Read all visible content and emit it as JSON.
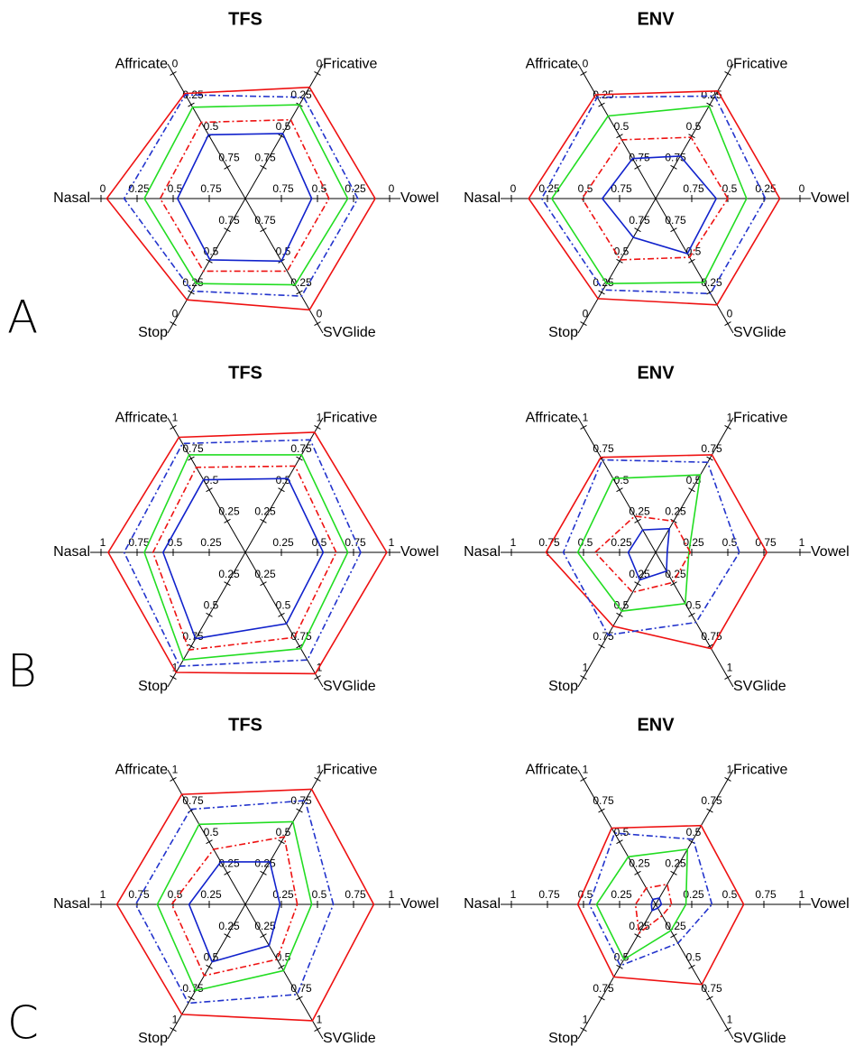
{
  "panel_labels": [
    "A",
    "B",
    "C"
  ],
  "chart_data": [
    {
      "type": "radar",
      "title": "TFS",
      "categories": [
        "Vowel",
        "Fricative",
        "Affricate",
        "Nasal",
        "Stop",
        "SVGlide"
      ],
      "rlim": [
        1,
        0
      ],
      "rticks": [
        0.75,
        0.5,
        0.25,
        0
      ],
      "series": [
        {
          "color": "#ee1111",
          "linestyle": "solid",
          "values": [
            0.1,
            0.11,
            0.16,
            0.04,
            0.19,
            0.11
          ]
        },
        {
          "color": "#2233cc",
          "linestyle": "dashdot",
          "values": [
            0.22,
            0.19,
            0.17,
            0.16,
            0.26,
            0.22
          ]
        },
        {
          "color": "#22dd22",
          "linestyle": "solid",
          "values": [
            0.29,
            0.25,
            0.27,
            0.3,
            0.32,
            0.31
          ]
        },
        {
          "color": "#ee1111",
          "linestyle": "dashdot",
          "values": [
            0.42,
            0.37,
            0.39,
            0.41,
            0.42,
            0.42
          ]
        },
        {
          "color": "#1122cc",
          "linestyle": "solid",
          "values": [
            0.54,
            0.48,
            0.49,
            0.53,
            0.51,
            0.5
          ]
        }
      ]
    },
    {
      "type": "radar",
      "title": "ENV",
      "categories": [
        "Vowel",
        "Fricative",
        "Affricate",
        "Nasal",
        "Stop",
        "SVGlide"
      ],
      "rlim": [
        1,
        0
      ],
      "rticks": [
        0.75,
        0.5,
        0.25,
        0
      ],
      "series": [
        {
          "color": "#ee1111",
          "linestyle": "solid",
          "values": [
            0.14,
            0.14,
            0.17,
            0.12,
            0.2,
            0.15
          ]
        },
        {
          "color": "#2233cc",
          "linestyle": "dashdot",
          "values": [
            0.24,
            0.18,
            0.19,
            0.21,
            0.27,
            0.24
          ]
        },
        {
          "color": "#22dd22",
          "linestyle": "solid",
          "values": [
            0.37,
            0.26,
            0.34,
            0.28,
            0.32,
            0.33
          ]
        },
        {
          "color": "#ee1111",
          "linestyle": "dashdot",
          "values": [
            0.5,
            0.51,
            0.53,
            0.49,
            0.51,
            0.53
          ]
        },
        {
          "color": "#1122cc",
          "linestyle": "solid",
          "values": [
            0.58,
            0.66,
            0.68,
            0.63,
            0.69,
            0.56
          ]
        }
      ]
    },
    {
      "type": "radar",
      "title": "TFS",
      "categories": [
        "Vowel",
        "Fricative",
        "Affricate",
        "Nasal",
        "Stop",
        "SVGlide"
      ],
      "rlim": [
        0,
        1
      ],
      "rticks": [
        0.25,
        0.5,
        0.75,
        1
      ],
      "series": [
        {
          "color": "#ee1111",
          "linestyle": "solid",
          "values": [
            0.98,
            0.96,
            0.92,
            0.95,
            0.96,
            0.97
          ]
        },
        {
          "color": "#2233cc",
          "linestyle": "dashdot",
          "values": [
            0.8,
            0.9,
            0.87,
            0.84,
            0.91,
            0.86
          ]
        },
        {
          "color": "#22dd22",
          "linestyle": "solid",
          "values": [
            0.71,
            0.78,
            0.78,
            0.7,
            0.86,
            0.77
          ]
        },
        {
          "color": "#ee1111",
          "linestyle": "dashdot",
          "values": [
            0.63,
            0.69,
            0.68,
            0.64,
            0.78,
            0.68
          ]
        },
        {
          "color": "#1122cc",
          "linestyle": "solid",
          "values": [
            0.54,
            0.59,
            0.58,
            0.57,
            0.69,
            0.57
          ]
        }
      ]
    },
    {
      "type": "radar",
      "title": "ENV",
      "categories": [
        "Vowel",
        "Fricative",
        "Affricate",
        "Nasal",
        "Stop",
        "SVGlide"
      ],
      "rlim": [
        0,
        1
      ],
      "rticks": [
        0.25,
        0.5,
        0.75,
        1
      ],
      "series": [
        {
          "color": "#ee1111",
          "linestyle": "solid",
          "values": [
            0.77,
            0.78,
            0.76,
            0.76,
            0.59,
            0.77
          ]
        },
        {
          "color": "#2233cc",
          "linestyle": "dashdot",
          "values": [
            0.58,
            0.72,
            0.74,
            0.64,
            0.66,
            0.56
          ]
        },
        {
          "color": "#22dd22",
          "linestyle": "solid",
          "values": [
            0.23,
            0.62,
            0.59,
            0.54,
            0.47,
            0.41
          ]
        },
        {
          "color": "#ee1111",
          "linestyle": "dashdot",
          "values": [
            0.24,
            0.25,
            0.29,
            0.42,
            0.32,
            0.24
          ]
        },
        {
          "color": "#1122cc",
          "linestyle": "solid",
          "values": [
            0.08,
            0.19,
            0.18,
            0.19,
            0.22,
            0.15
          ]
        }
      ]
    },
    {
      "type": "radar",
      "title": "TFS",
      "categories": [
        "Vowel",
        "Fricative",
        "Affricate",
        "Nasal",
        "Stop",
        "SVGlide"
      ],
      "rlim": [
        0,
        1
      ],
      "rticks": [
        0.25,
        0.5,
        0.75,
        1
      ],
      "series": [
        {
          "color": "#ee1111",
          "linestyle": "solid",
          "values": [
            0.89,
            0.92,
            0.88,
            0.89,
            0.88,
            0.93
          ]
        },
        {
          "color": "#2233cc",
          "linestyle": "dashdot",
          "values": [
            0.61,
            0.83,
            0.76,
            0.76,
            0.79,
            0.72
          ]
        },
        {
          "color": "#22dd22",
          "linestyle": "solid",
          "values": [
            0.46,
            0.66,
            0.64,
            0.61,
            0.69,
            0.53
          ]
        },
        {
          "color": "#ee1111",
          "linestyle": "dashdot",
          "values": [
            0.36,
            0.54,
            0.44,
            0.51,
            0.57,
            0.44
          ]
        },
        {
          "color": "#1122cc",
          "linestyle": "solid",
          "values": [
            0.24,
            0.34,
            0.34,
            0.39,
            0.46,
            0.33
          ]
        }
      ]
    },
    {
      "type": "radar",
      "title": "ENV",
      "categories": [
        "Vowel",
        "Fricative",
        "Affricate",
        "Nasal",
        "Stop",
        "SVGlide"
      ],
      "rlim": [
        0,
        1
      ],
      "rticks": [
        0.25,
        0.5,
        0.75,
        1
      ],
      "series": [
        {
          "color": "#ee1111",
          "linestyle": "solid",
          "values": [
            0.61,
            0.63,
            0.61,
            0.54,
            0.58,
            0.64
          ]
        },
        {
          "color": "#2233cc",
          "linestyle": "dashdot",
          "values": [
            0.39,
            0.52,
            0.57,
            0.46,
            0.49,
            0.31
          ]
        },
        {
          "color": "#22dd22",
          "linestyle": "solid",
          "values": [
            0.21,
            0.44,
            0.38,
            0.41,
            0.44,
            0.21
          ]
        },
        {
          "color": "#ee1111",
          "linestyle": "dashdot",
          "values": [
            0.11,
            0.16,
            0.13,
            0.14,
            0.23,
            0.09
          ]
        },
        {
          "color": "#1122cc",
          "linestyle": "solid",
          "values": [
            0.04,
            0.05,
            0.04,
            0.03,
            0.05,
            0.03
          ]
        }
      ]
    }
  ]
}
